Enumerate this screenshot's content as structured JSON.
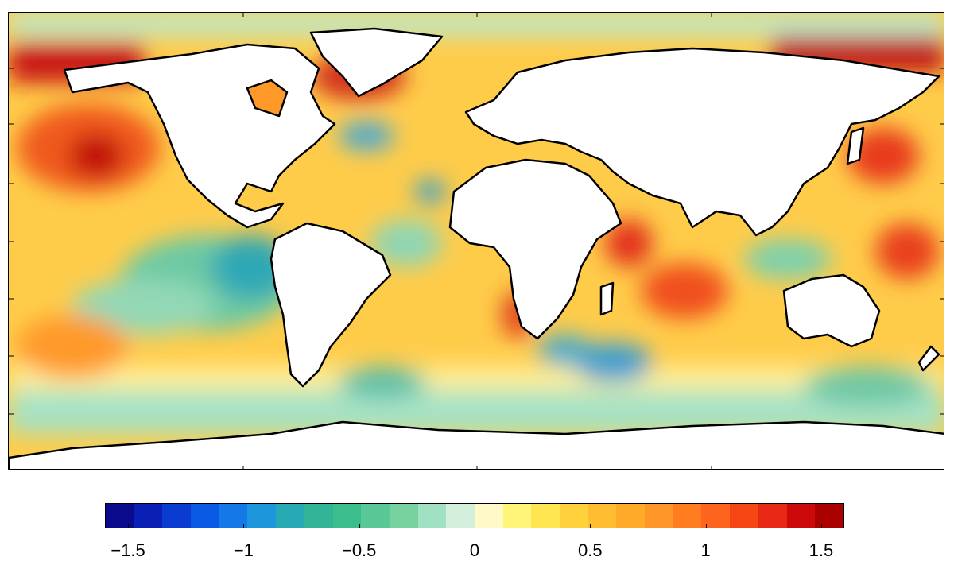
{
  "map": {
    "type": "global sea-surface anomaly map",
    "projection": "equirectangular",
    "frame_ticks": {
      "x_count": 3,
      "y_count": 7
    }
  },
  "colorbar": {
    "min": -1.6,
    "max": 1.6,
    "bins": 26,
    "colors": [
      "#0a0a8c",
      "#0a1fb4",
      "#0a3cd2",
      "#0a5ae6",
      "#1478e6",
      "#1e96dc",
      "#28aab4",
      "#32b496",
      "#3cbe8c",
      "#5ac896",
      "#78d2a0",
      "#a0e1c3",
      "#d2f0dc",
      "#fffac8",
      "#fff578",
      "#ffe650",
      "#ffd23c",
      "#ffbe32",
      "#ffaa28",
      "#ff9628",
      "#ff7d1e",
      "#ff641e",
      "#f54614",
      "#e62814",
      "#cd0a0a",
      "#aa0000"
    ],
    "tick_values": [
      -1.5,
      -1,
      -0.5,
      0,
      0.5,
      1,
      1.5
    ],
    "tick_labels": [
      "−1.5",
      "−1",
      "−0.5",
      "0",
      "0.5",
      "1",
      "1.5"
    ]
  }
}
